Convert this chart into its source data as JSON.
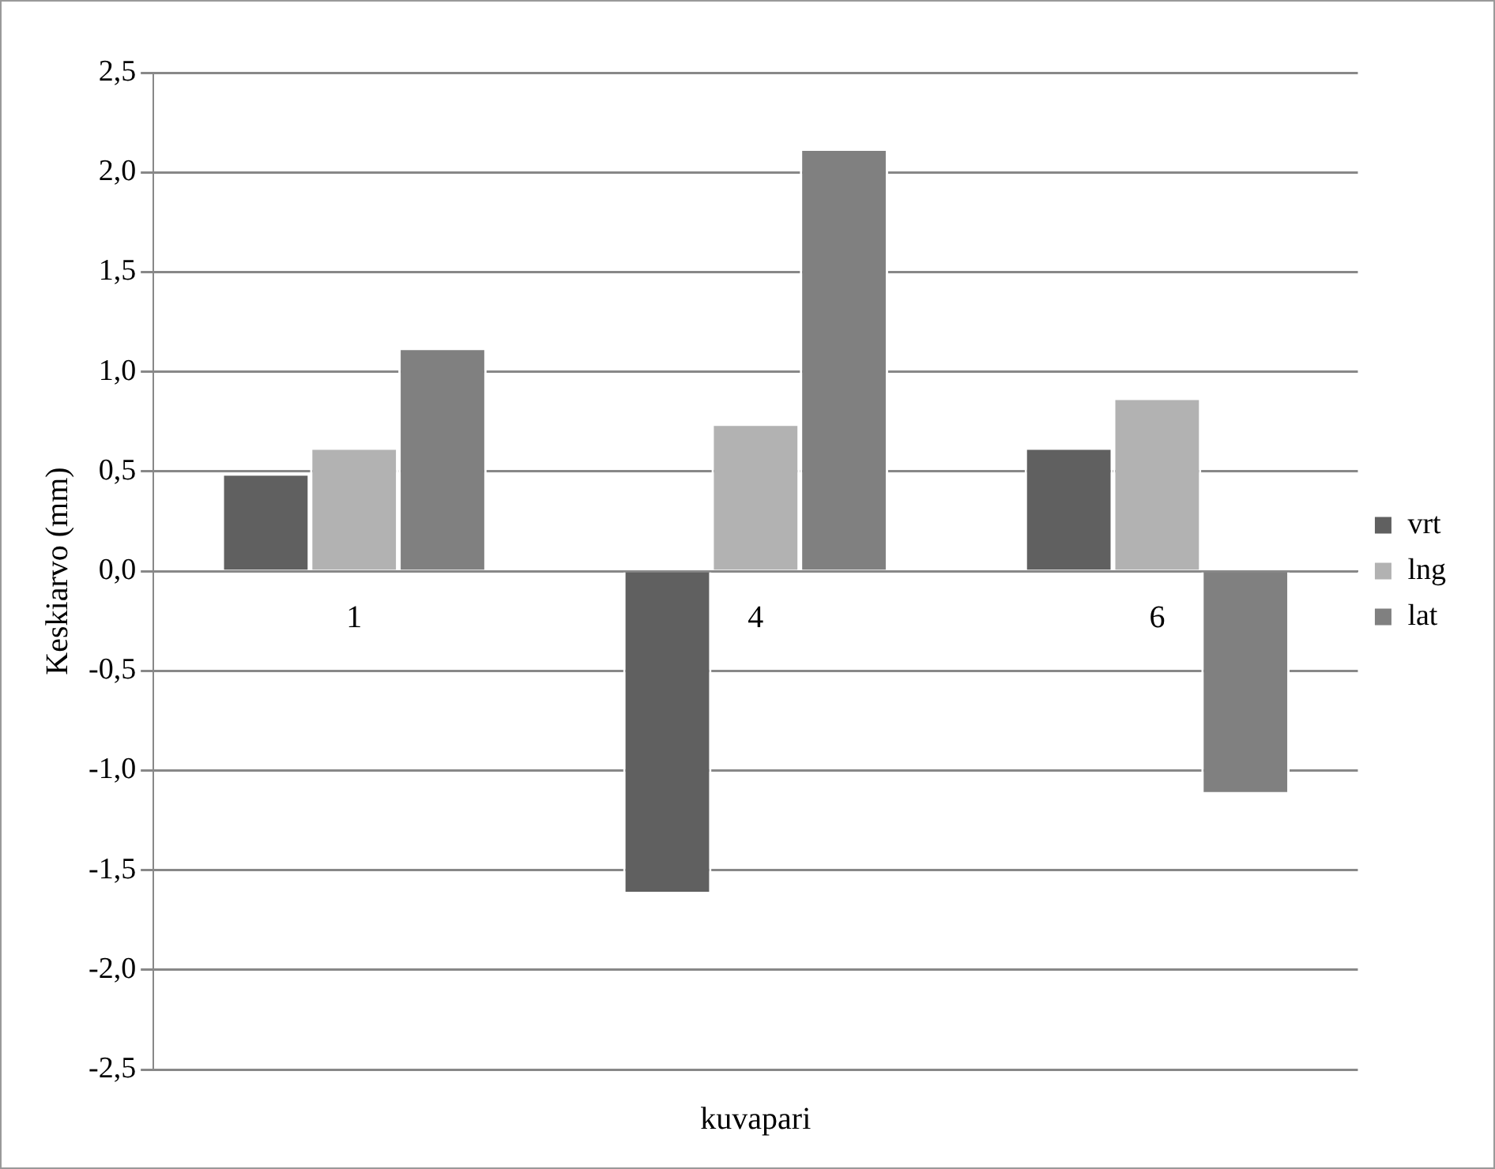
{
  "chart_data": {
    "type": "bar",
    "xlabel": "kuvapari",
    "ylabel": "Keskiarvo (mm)",
    "categories": [
      "1",
      "4",
      "6"
    ],
    "series": [
      {
        "name": "vrt",
        "color": "#606060",
        "values": [
          0.49,
          -1.62,
          0.62
        ]
      },
      {
        "name": "lng",
        "color": "#b2b2b2",
        "values": [
          0.62,
          0.74,
          0.87
        ]
      },
      {
        "name": "lat",
        "color": "#808080",
        "values": [
          1.12,
          2.12,
          -1.12
        ]
      }
    ],
    "ylim": [
      -2.5,
      2.5
    ],
    "yticks": [
      {
        "value": -2.5,
        "label": "-2,5"
      },
      {
        "value": -2,
        "label": "-2,0"
      },
      {
        "value": -1.5,
        "label": "-1,5"
      },
      {
        "value": -1,
        "label": "-1,0"
      },
      {
        "value": -0.5,
        "label": "-0,5"
      },
      {
        "value": 0,
        "label": "0,0"
      },
      {
        "value": 0.5,
        "label": "0,5"
      },
      {
        "value": 1,
        "label": "1,0"
      },
      {
        "value": 1.5,
        "label": "1,5"
      },
      {
        "value": 2,
        "label": "2,0"
      },
      {
        "value": 2.5,
        "label": "2,5"
      }
    ],
    "grid": "y",
    "legend": "right"
  }
}
